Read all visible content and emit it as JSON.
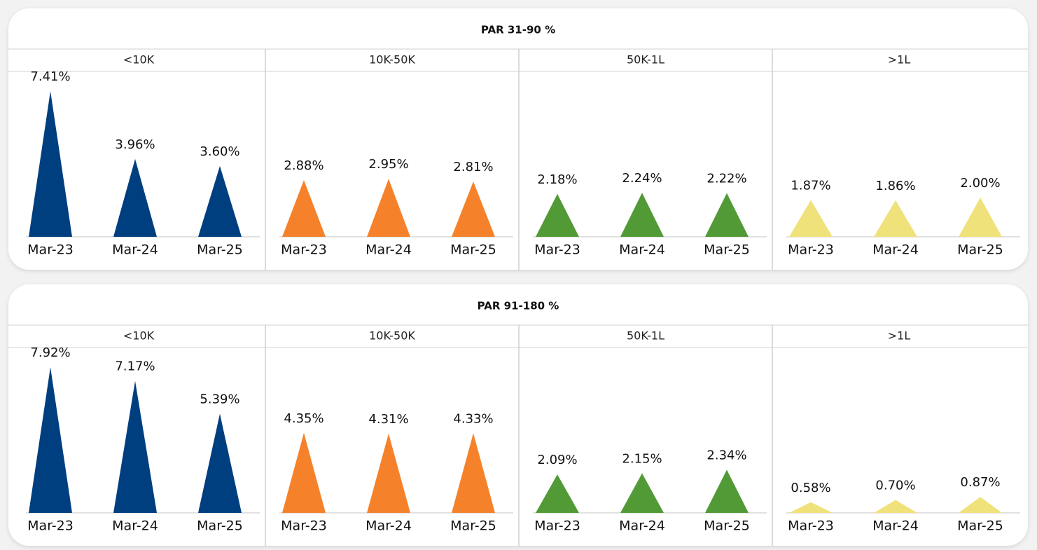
{
  "chart_data": [
    {
      "type": "triangle",
      "title": "PAR 31-90 %",
      "groups": [
        {
          "name": "<10K",
          "color": "#003f7f",
          "categories": [
            "Mar-23",
            "Mar-24",
            "Mar-25"
          ],
          "values": [
            7.41,
            3.96,
            3.6
          ],
          "value_labels": [
            "7.41%",
            "3.96%",
            "3.60%"
          ]
        },
        {
          "name": "10K-50K",
          "color": "#f5822a",
          "categories": [
            "Mar-23",
            "Mar-24",
            "Mar-25"
          ],
          "values": [
            2.88,
            2.95,
            2.81
          ],
          "value_labels": [
            "2.88%",
            "2.95%",
            "2.81%"
          ]
        },
        {
          "name": "50K-1L",
          "color": "#529a35",
          "categories": [
            "Mar-23",
            "Mar-24",
            "Mar-25"
          ],
          "values": [
            2.18,
            2.24,
            2.22
          ],
          "value_labels": [
            "2.18%",
            "2.24%",
            "2.22%"
          ]
        },
        {
          "name": ">1L",
          "color": "#f0e27a",
          "categories": [
            "Mar-23",
            "Mar-24",
            "Mar-25"
          ],
          "values": [
            1.87,
            1.86,
            2.0
          ],
          "value_labels": [
            "1.87%",
            "1.86%",
            "2.00%"
          ]
        }
      ]
    },
    {
      "type": "triangle",
      "title": "PAR 91-180 %",
      "groups": [
        {
          "name": "<10K",
          "color": "#003f7f",
          "categories": [
            "Mar-23",
            "Mar-24",
            "Mar-25"
          ],
          "values": [
            7.92,
            7.17,
            5.39
          ],
          "value_labels": [
            "7.92%",
            "7.17%",
            "5.39%"
          ]
        },
        {
          "name": "10K-50K",
          "color": "#f5822a",
          "categories": [
            "Mar-23",
            "Mar-24",
            "Mar-25"
          ],
          "values": [
            4.35,
            4.31,
            4.33
          ],
          "value_labels": [
            "4.35%",
            "4.31%",
            "4.33%"
          ]
        },
        {
          "name": "50K-1L",
          "color": "#529a35",
          "categories": [
            "Mar-23",
            "Mar-24",
            "Mar-25"
          ],
          "values": [
            2.09,
            2.15,
            2.34
          ],
          "value_labels": [
            "2.09%",
            "2.15%",
            "2.34%"
          ]
        },
        {
          "name": ">1L",
          "color": "#f0e27a",
          "categories": [
            "Mar-23",
            "Mar-24",
            "Mar-25"
          ],
          "values": [
            0.58,
            0.7,
            0.87
          ],
          "value_labels": [
            "0.58%",
            "0.70%",
            "0.87%"
          ]
        }
      ]
    }
  ]
}
